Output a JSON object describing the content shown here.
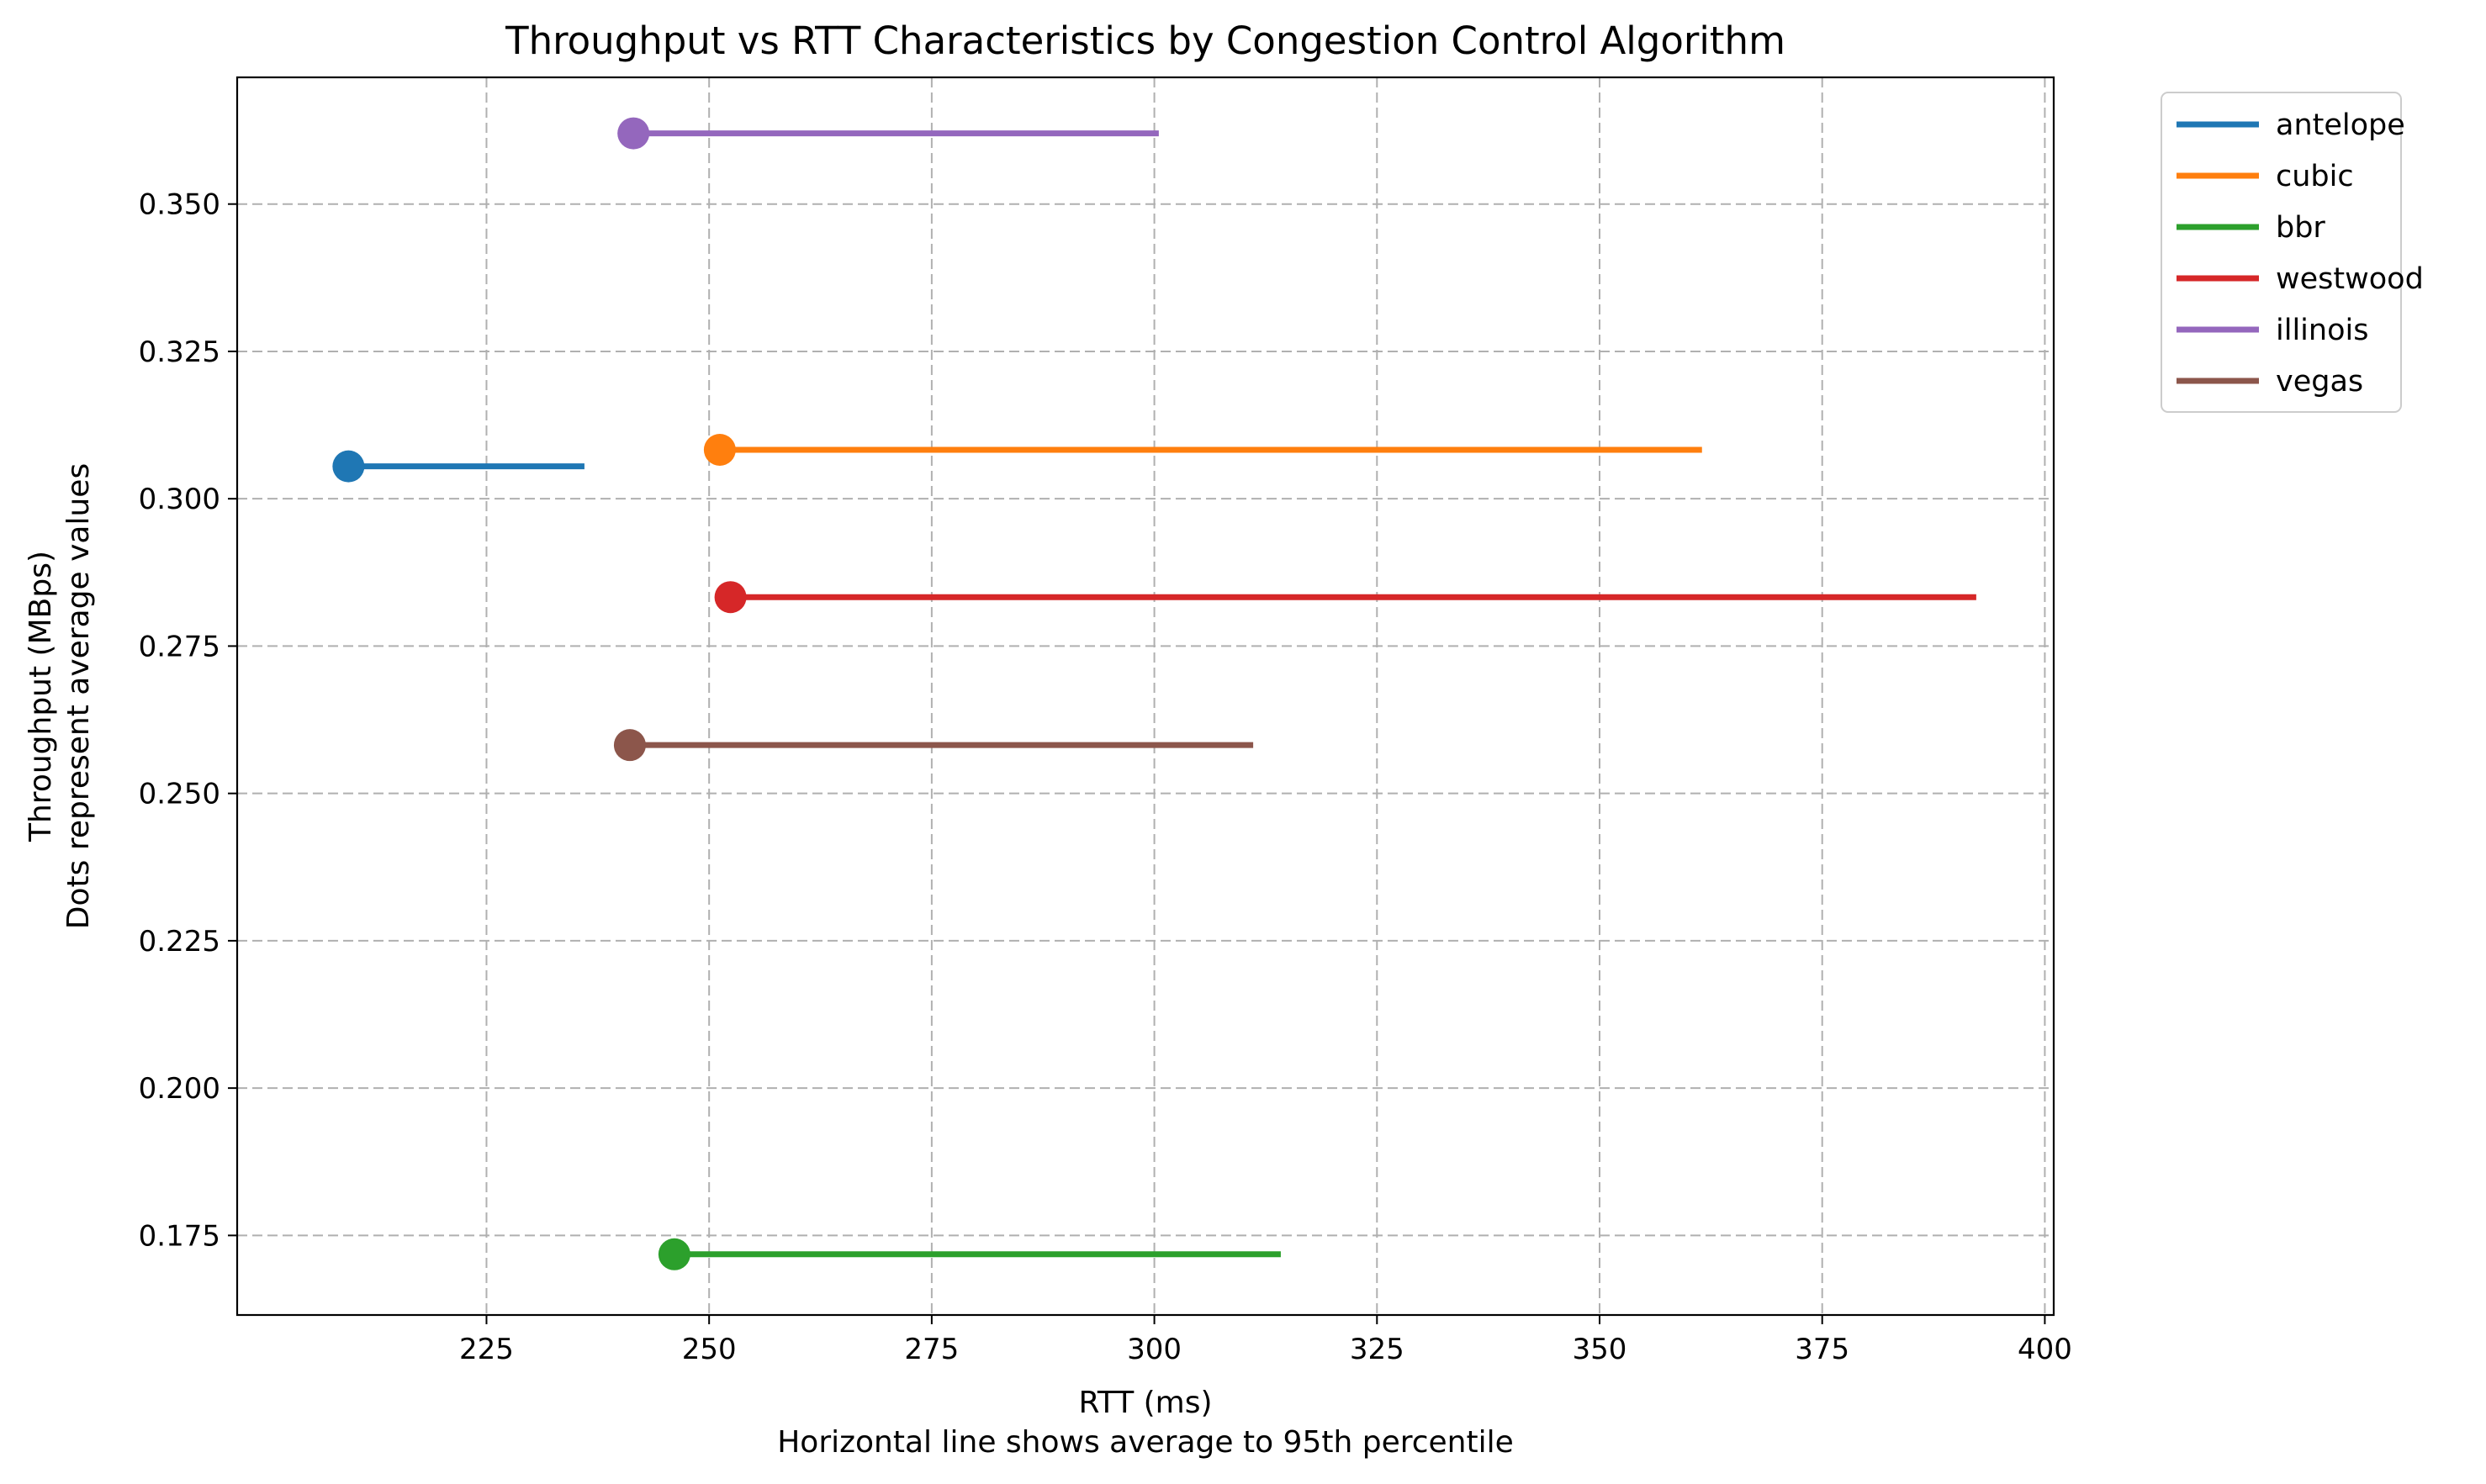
{
  "chart_data": {
    "type": "dumbbell",
    "title": "Throughput vs RTT Characteristics by Congestion Control Algorithm",
    "xlabel": "RTT (ms)",
    "xlabel_note": "Horizontal line shows average to 95th percentile",
    "ylabel": "Throughput (MBps)",
    "ylabel_note": "Dots represent average values",
    "xlim": [
      197,
      401
    ],
    "ylim": [
      0.1615,
      0.3715
    ],
    "xticks": [
      225,
      250,
      275,
      300,
      325,
      350,
      375,
      400
    ],
    "yticks": [
      0.175,
      0.2,
      0.225,
      0.25,
      0.275,
      0.3,
      0.325,
      0.35
    ],
    "xtick_labels": [
      "225",
      "250",
      "275",
      "300",
      "325",
      "350",
      "375",
      "400"
    ],
    "ytick_labels": [
      "0.175",
      "0.200",
      "0.225",
      "0.250",
      "0.275",
      "0.300",
      "0.325",
      "0.350"
    ],
    "grid": true,
    "grid_style": "dashed",
    "legend_position": "outside-top-right",
    "series": [
      {
        "name": "antelope",
        "color": "#1f77b4",
        "avg_rtt": 209.5,
        "p95_rtt": 236.0,
        "throughput": 0.3055
      },
      {
        "name": "cubic",
        "color": "#ff7f0e",
        "avg_rtt": 251.2,
        "p95_rtt": 361.5,
        "throughput": 0.3083
      },
      {
        "name": "bbr",
        "color": "#2ca02c",
        "avg_rtt": 246.1,
        "p95_rtt": 314.2,
        "throughput": 0.1718
      },
      {
        "name": "westwood",
        "color": "#d62728",
        "avg_rtt": 252.4,
        "p95_rtt": 392.3,
        "throughput": 0.2833
      },
      {
        "name": "illinois",
        "color": "#9467bd",
        "avg_rtt": 241.5,
        "p95_rtt": 300.5,
        "throughput": 0.362
      },
      {
        "name": "vegas",
        "color": "#8c564b",
        "avg_rtt": 241.1,
        "p95_rtt": 311.1,
        "throughput": 0.2582
      }
    ]
  }
}
